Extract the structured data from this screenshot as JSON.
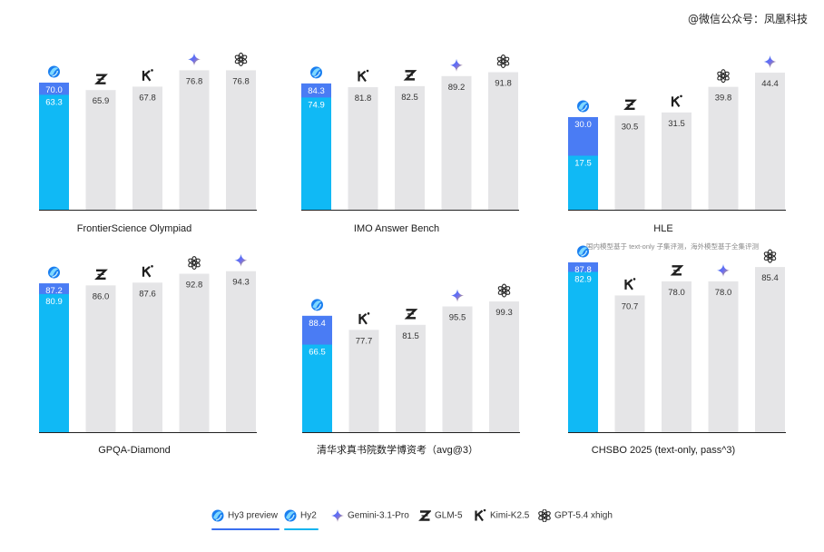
{
  "watermark": "@微信公众号：凤凰科技",
  "colors": {
    "hy3": "#4a7cf4",
    "hy2": "#10b9f5",
    "other": "#e5e5e7",
    "axis": "#222222"
  },
  "legend": [
    {
      "name": "Hy3 preview",
      "icon": "hy-logo-icon",
      "color": "#3a6ff0"
    },
    {
      "name": "Hy2",
      "icon": "hy-logo-icon",
      "color": "#13b4ef"
    },
    {
      "name": "Gemini-3.1-Pro",
      "icon": "gemini-star-icon",
      "color": ""
    },
    {
      "name": "GLM-5",
      "icon": "glm-z-icon",
      "color": ""
    },
    {
      "name": "Kimi-K2.5",
      "icon": "kimi-k-icon",
      "color": ""
    },
    {
      "name": "GPT-5.4 xhigh",
      "icon": "openai-knot-icon",
      "color": ""
    }
  ],
  "chart_data": [
    {
      "type": "bar",
      "title": "FrontierScience Olympiad",
      "note": "",
      "categories": [
        "Hy",
        "GLM-5",
        "Kimi-K2.5",
        "Gemini-3.1-Pro",
        "GPT-5.4 xhigh"
      ],
      "icons": [
        "hy-logo-icon",
        "glm-z-icon",
        "kimi-k-icon",
        "gemini-star-icon",
        "openai-knot-icon"
      ],
      "hy3": 70.0,
      "hy2": 63.3,
      "values": [
        null,
        65.9,
        67.8,
        76.8,
        76.8
      ],
      "labels": [
        "",
        "65.9",
        "67.8",
        "76.8",
        "76.8"
      ],
      "hy3_label": "70.0",
      "hy2_label": "63.3",
      "ylim": [
        0,
        86
      ]
    },
    {
      "type": "bar",
      "title": "IMO Answer Bench",
      "note": "",
      "categories": [
        "Hy",
        "Kimi-K2.5",
        "GLM-5",
        "Gemini-3.1-Pro",
        "GPT-5.4 xhigh"
      ],
      "icons": [
        "hy-logo-icon",
        "kimi-k-icon",
        "glm-z-icon",
        "gemini-star-icon",
        "openai-knot-icon"
      ],
      "hy3": 84.3,
      "hy2": 74.9,
      "values": [
        null,
        81.8,
        82.5,
        89.2,
        91.8
      ],
      "labels": [
        "",
        "81.8",
        "82.5",
        "89.2",
        "91.8"
      ],
      "hy3_label": "84.3",
      "hy2_label": "74.9",
      "ylim": [
        0,
        101
      ]
    },
    {
      "type": "bar",
      "title": "HLE",
      "note": "国内模型基于 text-only 子集评测，海外模型基于全集评测",
      "categories": [
        "Hy",
        "GLM-5",
        "Kimi-K2.5",
        "GPT-5.4 xhigh",
        "Gemini-3.1-Pro"
      ],
      "icons": [
        "hy-logo-icon",
        "glm-z-icon",
        "kimi-k-icon",
        "openai-knot-icon",
        "gemini-star-icon"
      ],
      "hy3": 30.0,
      "hy2": 17.5,
      "values": [
        null,
        30.5,
        31.5,
        39.8,
        44.4
      ],
      "labels": [
        "",
        "30.5",
        "31.5",
        "39.8",
        "44.4"
      ],
      "hy3_label": "30.0",
      "hy2_label": "17.5",
      "ylim": [
        0,
        49
      ]
    },
    {
      "type": "bar",
      "title": "GPQA-Diamond",
      "note": "",
      "categories": [
        "Hy",
        "GLM-5",
        "Kimi-K2.5",
        "GPT-5.4 xhigh",
        "Gemini-3.1-Pro"
      ],
      "icons": [
        "hy-logo-icon",
        "glm-z-icon",
        "kimi-k-icon",
        "openai-knot-icon",
        "gemini-star-icon"
      ],
      "hy3": 87.2,
      "hy2": 80.9,
      "values": [
        null,
        86.0,
        87.6,
        92.8,
        94.3
      ],
      "labels": [
        "",
        "86.0",
        "87.6",
        "92.8",
        "94.3"
      ],
      "hy3_label": "87.2",
      "hy2_label": "80.9",
      "ylim": [
        0,
        102.5
      ]
    },
    {
      "type": "bar",
      "title": "清华求真书院数学博资考（avg@3）",
      "note": "",
      "categories": [
        "Hy",
        "Kimi-K2.5",
        "GLM-5",
        "Gemini-3.1-Pro",
        "GPT-5.4 xhigh"
      ],
      "icons": [
        "hy-logo-icon",
        "kimi-k-icon",
        "glm-z-icon",
        "gemini-star-icon",
        "openai-knot-icon"
      ],
      "hy3": 88.4,
      "hy2": 66.5,
      "values": [
        null,
        77.7,
        81.5,
        95.5,
        99.3
      ],
      "labels": [
        "",
        "77.7",
        "81.5",
        "95.5",
        "99.3"
      ],
      "hy3_label": "88.4",
      "hy2_label": "66.5",
      "ylim": [
        0,
        119
      ]
    },
    {
      "type": "bar",
      "title": "CHSBO 2025 (text-only, pass^3)",
      "note": "",
      "categories": [
        "Hy",
        "Kimi-K2.5",
        "GLM-5",
        "Gemini-3.1-Pro",
        "GPT-5.4 xhigh"
      ],
      "icons": [
        "hy-logo-icon",
        "kimi-k-icon",
        "glm-z-icon",
        "gemini-star-icon",
        "openai-knot-icon"
      ],
      "hy3": 87.8,
      "hy2": 82.9,
      "values": [
        null,
        70.7,
        78.0,
        78.0,
        85.4
      ],
      "labels": [
        "",
        "70.7",
        "78.0",
        "78.0",
        "85.4"
      ],
      "hy3_label": "87.8",
      "hy2_label": "82.9",
      "ylim": [
        0,
        96
      ]
    }
  ]
}
